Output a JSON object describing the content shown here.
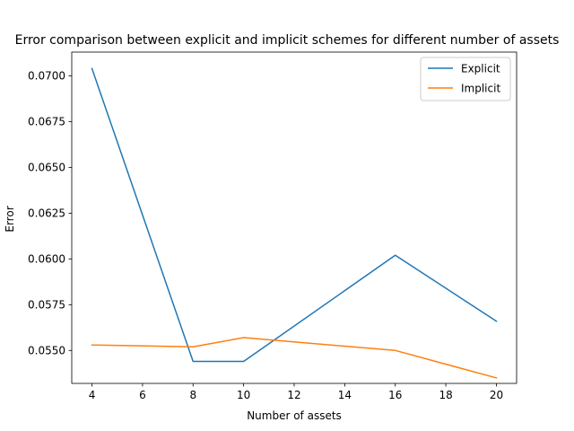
{
  "chart_data": {
    "type": "line",
    "title": "Error comparison between explicit and implicit schemes for different number of assets",
    "xlabel": "Number of assets",
    "ylabel": "Error",
    "x": [
      4,
      8,
      10,
      16,
      20
    ],
    "xlim": [
      3.2,
      20.8
    ],
    "ylim": [
      0.0532,
      0.0713
    ],
    "xticks": [
      4,
      6,
      8,
      10,
      12,
      14,
      16,
      18,
      20
    ],
    "yticks": [
      0.055,
      0.0575,
      0.06,
      0.0625,
      0.065,
      0.0675,
      0.07
    ],
    "yticks_labels": [
      "0.0550",
      "0.0575",
      "0.0600",
      "0.0625",
      "0.0650",
      "0.0675",
      "0.0700"
    ],
    "grid": false,
    "legend_position": "upper right",
    "series": [
      {
        "name": "Explicit",
        "color": "#1f77b4",
        "values": [
          0.0704,
          0.0544,
          0.0544,
          0.0602,
          0.0566
        ]
      },
      {
        "name": "Implicit",
        "color": "#ff7f0e",
        "values": [
          0.0553,
          0.0552,
          0.0557,
          0.055,
          0.0535
        ]
      }
    ]
  }
}
